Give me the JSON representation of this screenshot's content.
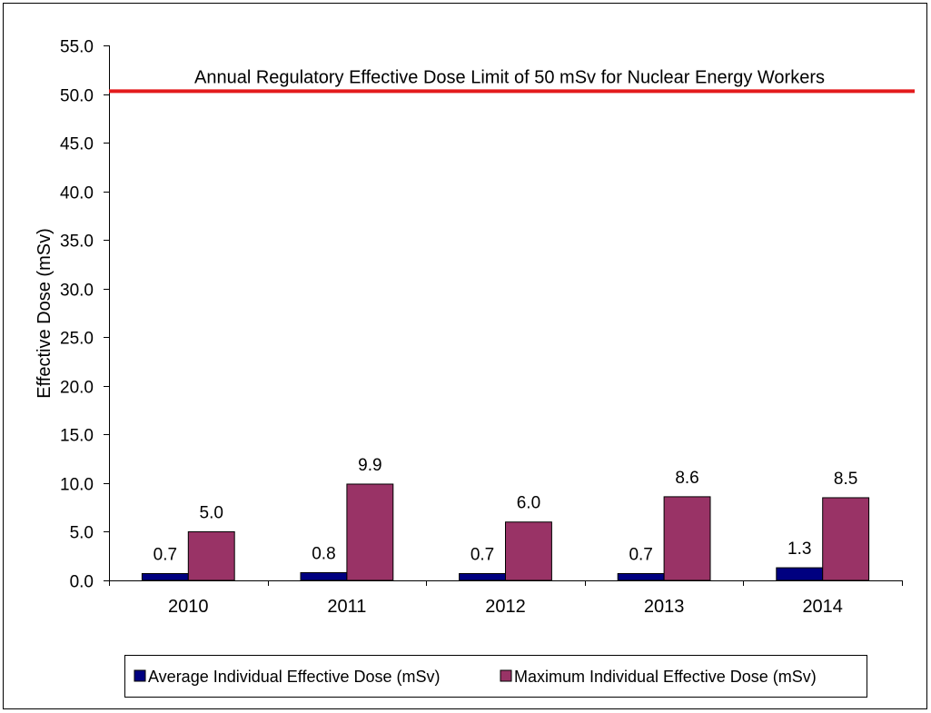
{
  "chart_data": {
    "type": "bar",
    "categories": [
      "2010",
      "2011",
      "2012",
      "2013",
      "2014"
    ],
    "series": [
      {
        "name": "Average Individual Effective Dose (mSv)",
        "values": [
          0.7,
          0.8,
          0.7,
          0.7,
          1.3
        ],
        "labels": [
          "0.7",
          "0.8",
          "0.7",
          "0.7",
          "1.3"
        ],
        "color": "#000080"
      },
      {
        "name": "Maximum Individual Effective Dose (mSv)",
        "values": [
          5.0,
          9.9,
          6.0,
          8.6,
          8.5
        ],
        "labels": [
          "5.0",
          "9.9",
          "6.0",
          "8.6",
          "8.5"
        ],
        "color": "#993366"
      }
    ],
    "title": "",
    "xlabel": "",
    "ylabel": "Effective Dose (mSv)",
    "ylim": [
      0,
      55
    ],
    "yticks": [
      "0.0",
      "5.0",
      "10.0",
      "15.0",
      "20.0",
      "25.0",
      "30.0",
      "35.0",
      "40.0",
      "45.0",
      "50.0",
      "55.0"
    ],
    "grid": false,
    "legend_position": "bottom",
    "reference_line": {
      "value": 50.3,
      "color": "#e31a1c",
      "label": "Annual Regulatory Effective Dose Limit of 50 mSv for Nuclear Energy Workers"
    }
  }
}
